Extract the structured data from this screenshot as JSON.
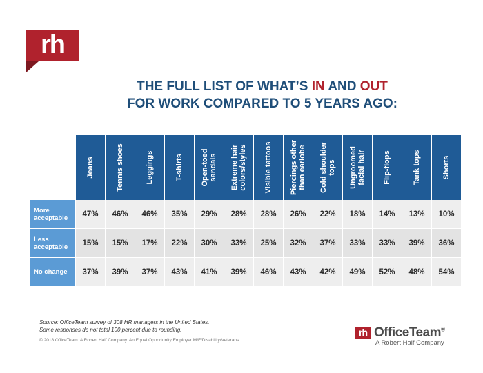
{
  "logo": {
    "text": "rh"
  },
  "title": {
    "line1_part1": "THE FULL LIST OF WHAT’S ",
    "line1_in": "IN",
    "line1_and": " AND ",
    "line1_out": "OUT",
    "line2": "FOR WORK COMPARED TO 5 YEARS AGO:"
  },
  "table": {
    "columns": [
      "Jeans",
      "Tennis shoes",
      "Leggings",
      "T-shirts",
      "Open-toed sandals",
      "Extreme hair colors/styles",
      "Visible tattoos",
      "Piercings other than earlobe",
      "Cold shoulder tops",
      "Ungroomed facial hair",
      "Flip-flops",
      "Tank tops",
      "Shorts"
    ],
    "rows": [
      {
        "label": "More acceptable",
        "values": [
          "47%",
          "46%",
          "46%",
          "35%",
          "29%",
          "28%",
          "28%",
          "26%",
          "22%",
          "18%",
          "14%",
          "13%",
          "10%"
        ]
      },
      {
        "label": "Less acceptable",
        "values": [
          "15%",
          "15%",
          "17%",
          "22%",
          "30%",
          "33%",
          "25%",
          "32%",
          "37%",
          "33%",
          "33%",
          "39%",
          "36%"
        ]
      },
      {
        "label": "No change",
        "values": [
          "37%",
          "39%",
          "37%",
          "43%",
          "41%",
          "39%",
          "46%",
          "43%",
          "42%",
          "49%",
          "52%",
          "48%",
          "54%"
        ]
      }
    ]
  },
  "footer": {
    "source_line1": "Source: OfficeTeam survey of 308 HR managers in the United States.",
    "source_line2": "Some responses do not total 100 percent due to rounding.",
    "copyright": "© 2018 OfficeTeam. A Robert Half Company. An Equal Opportunity Employer M/F/Disability/Veterans."
  },
  "brand": {
    "mark": "rh",
    "name": "OfficeTeam",
    "reg": "®",
    "subtitle": "A Robert Half Company"
  },
  "colors": {
    "brand_red": "#b0222d",
    "title_blue": "#1f4e79",
    "header_blue": "#1f5b96",
    "row_header_blue": "#5b9bd5",
    "cell_gray": "#eeeeee"
  }
}
